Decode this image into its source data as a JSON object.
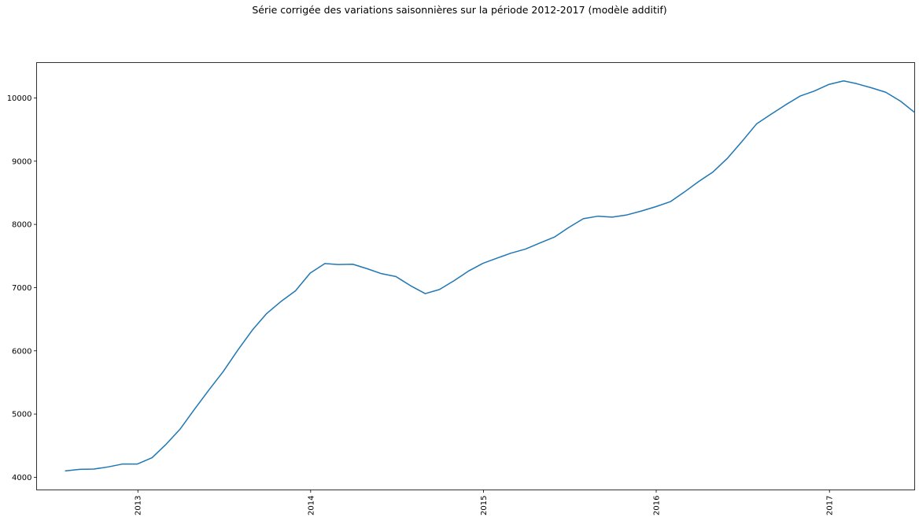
{
  "chart_data": {
    "type": "line",
    "title": "Série corrigée des variations saisonnières sur la période 2012-2017 (modèle additif)",
    "xlabel": "",
    "ylabel": "",
    "x_range": [
      "2012-06-01",
      "2017-06-30"
    ],
    "ylim": [
      3800,
      10560
    ],
    "x_ticks": [
      "2013",
      "2014",
      "2015",
      "2016",
      "2017"
    ],
    "y_ticks": [
      4000,
      5000,
      6000,
      7000,
      8000,
      9000,
      10000
    ],
    "grid": false,
    "legend": "none",
    "line_color": "#1f77b4",
    "series": [
      {
        "x": [
          "2012-07",
          "2012-08",
          "2012-09",
          "2012-10",
          "2012-11",
          "2012-12",
          "2013-01",
          "2013-02",
          "2013-03",
          "2013-04",
          "2013-05",
          "2013-06",
          "2013-07",
          "2013-08",
          "2013-09",
          "2013-10",
          "2013-11",
          "2013-12",
          "2014-01",
          "2014-02",
          "2014-03",
          "2014-04",
          "2014-05",
          "2014-06",
          "2014-07",
          "2014-08",
          "2014-09",
          "2014-10",
          "2014-11",
          "2014-12",
          "2015-01",
          "2015-02",
          "2015-03",
          "2015-04",
          "2015-05",
          "2015-06",
          "2015-07",
          "2015-08",
          "2015-09",
          "2015-10",
          "2015-11",
          "2015-12",
          "2016-01",
          "2016-02",
          "2016-03",
          "2016-04",
          "2016-05",
          "2016-06",
          "2016-07",
          "2016-08",
          "2016-09",
          "2016-10",
          "2016-11",
          "2016-12",
          "2017-01",
          "2017-02",
          "2017-03",
          "2017-04",
          "2017-05",
          "2017-06"
        ],
        "values": [
          4100,
          4125,
          4130,
          4165,
          4210,
          4210,
          4310,
          4510,
          4760,
          5070,
          5380,
          5670,
          6010,
          6330,
          6590,
          6785,
          6950,
          7230,
          7380,
          7365,
          7370,
          7300,
          7220,
          7175,
          7030,
          6905,
          6970,
          7110,
          7260,
          7385,
          7470,
          7545,
          7610,
          7705,
          7800,
          7950,
          8090,
          8130,
          8115,
          8150,
          8210,
          8280,
          8360,
          8510,
          8680,
          8830,
          9050,
          9310,
          9590,
          9745,
          9890,
          10030,
          10110,
          10215,
          10270,
          10225,
          10160,
          10090,
          9950,
          9770
        ]
      }
    ]
  }
}
